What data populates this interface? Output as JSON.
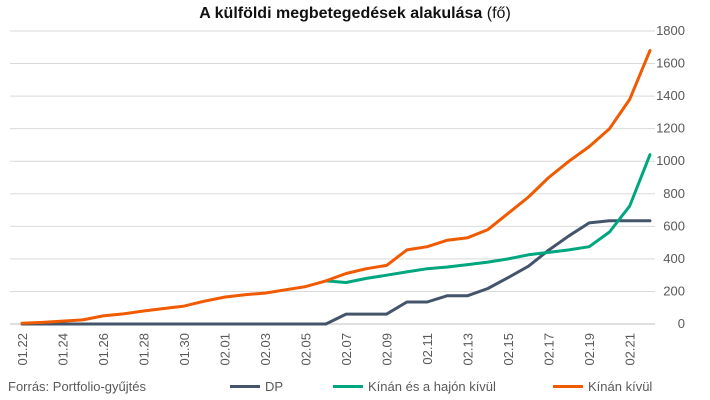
{
  "chart_data": {
    "type": "line",
    "title": "A külföldi megbetegedések alakulása",
    "title_unit": "(fő)",
    "source": "Forrás: Portfolio-gyűjtés",
    "ylim": [
      0,
      1800
    ],
    "yticks": [
      0,
      200,
      400,
      600,
      800,
      1000,
      1200,
      1400,
      1600,
      1800
    ],
    "x": [
      "01.22",
      "01.23",
      "01.24",
      "01.25",
      "01.26",
      "01.27",
      "01.28",
      "01.29",
      "01.30",
      "01.31",
      "02.01",
      "02.02",
      "02.03",
      "02.04",
      "02.05",
      "02.06",
      "02.07",
      "02.08",
      "02.09",
      "02.10",
      "02.11",
      "02.12",
      "02.13",
      "02.14",
      "02.15",
      "02.16",
      "02.17",
      "02.18",
      "02.19",
      "02.20",
      "02.21",
      "02.22"
    ],
    "xtick_labels": [
      "01.22",
      "01.24",
      "01.26",
      "01.28",
      "01.30",
      "02.01",
      "02.03",
      "02.05",
      "02.07",
      "02.09",
      "02.11",
      "02.13",
      "02.15",
      "02.17",
      "02.19",
      "02.21"
    ],
    "grid": true,
    "legend_position": "bottom",
    "series": [
      {
        "name": "DP",
        "color": "#44546a",
        "values": [
          0,
          0,
          0,
          0,
          0,
          0,
          0,
          0,
          0,
          0,
          0,
          0,
          0,
          0,
          0,
          0,
          61,
          61,
          61,
          135,
          135,
          174,
          174,
          218,
          285,
          355,
          454,
          542,
          621,
          634,
          634,
          634
        ]
      },
      {
        "name": "Kínán és a hajón kívül",
        "color": "#00a67e",
        "values": [
          null,
          null,
          null,
          null,
          null,
          null,
          null,
          null,
          null,
          null,
          null,
          null,
          null,
          null,
          null,
          265,
          255,
          280,
          300,
          320,
          340,
          350,
          365,
          380,
          400,
          425,
          440,
          455,
          475,
          565,
          725,
          1040
        ]
      },
      {
        "name": "Kínán kívül",
        "color": "#f05a00",
        "values": [
          5,
          10,
          18,
          25,
          50,
          62,
          80,
          95,
          110,
          140,
          165,
          180,
          190,
          210,
          230,
          265,
          310,
          340,
          360,
          455,
          475,
          515,
          530,
          580,
          680,
          780,
          900,
          1000,
          1090,
          1200,
          1380,
          1680
        ]
      }
    ]
  }
}
